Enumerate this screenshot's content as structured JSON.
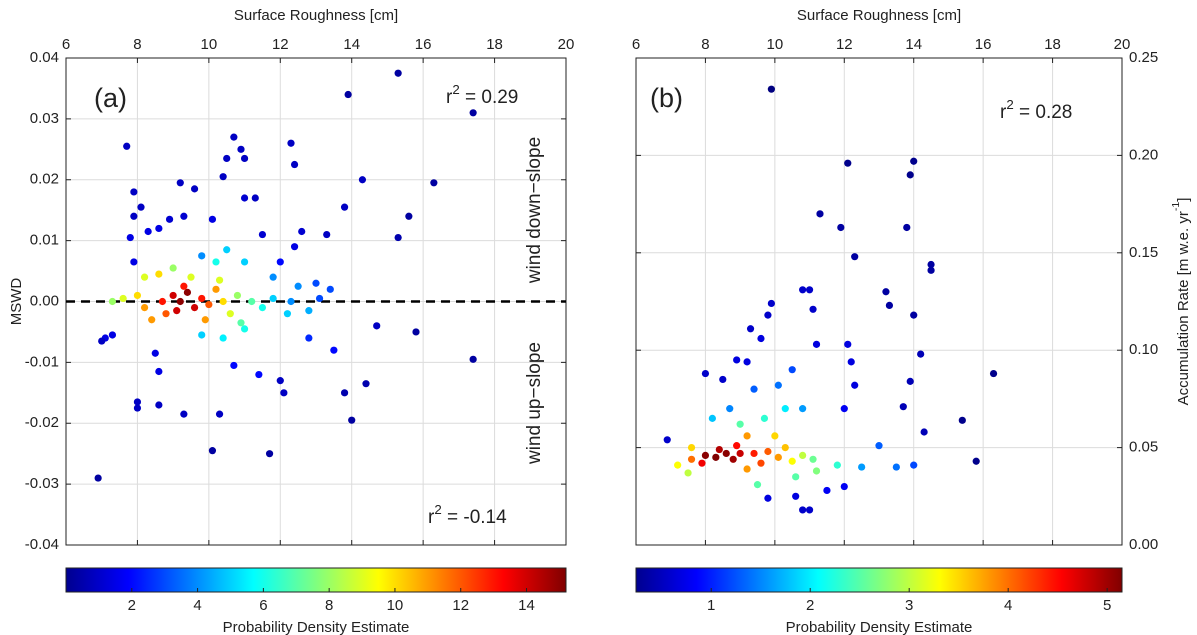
{
  "chart_data": [
    {
      "type": "scatter",
      "panel_label": "(a)",
      "x_label": "Surface Roughness [cm]",
      "y_label": "MSWD",
      "xlim": [
        6,
        20
      ],
      "xticks": [
        6,
        8,
        10,
        12,
        14,
        16,
        18,
        20
      ],
      "ylim": [
        -0.04,
        0.04
      ],
      "yticks": [
        -0.04,
        -0.03,
        -0.02,
        -0.01,
        {
          "value": 0,
          "label": "0.00"
        },
        0.01,
        0.02,
        0.03,
        0.04
      ],
      "grid": true,
      "zero_line": true,
      "annotations": [
        [
          "r",
          "2",
          " = 0.29"
        ],
        [
          "r",
          "2",
          " = -0.14"
        ]
      ],
      "side_labels": [
        "wind down−slope",
        "wind up−slope"
      ],
      "x": [
        6.9,
        7.7,
        7.9,
        7.9,
        8.1,
        7.8,
        7.9,
        7.1,
        7.3,
        7.0,
        8.0,
        8.0,
        8.6,
        8.6,
        8.5,
        9.3,
        10.1,
        10.3,
        11.7,
        9.6,
        10.5,
        10.7,
        10.9,
        11.0,
        10.4,
        12.3,
        12.4,
        11.3,
        11.0,
        9.2,
        8.9,
        9.3,
        10.1,
        11.5,
        12.6,
        13.3,
        13.8,
        14.3,
        13.9,
        15.3,
        17.4,
        16.3,
        15.6,
        15.3,
        15.8,
        17.4,
        14.4,
        14.0,
        13.8,
        12.1,
        12.0,
        14.7,
        8.3,
        8.6,
        12.4,
        12.0,
        11.4,
        10.7,
        13.5,
        12.8,
        9.8,
        10.5,
        10.2,
        11.0,
        11.8,
        12.5,
        13.0,
        13.4,
        9.8,
        10.4,
        11.0,
        12.2,
        12.8,
        7.3,
        7.6,
        8.0,
        8.2,
        8.6,
        9.0,
        9.5,
        9.0,
        9.2,
        9.4,
        9.6,
        9.1,
        9.3,
        8.7,
        8.8,
        9.8,
        10.0,
        10.2,
        10.4,
        10.6,
        10.8,
        11.2,
        11.5,
        8.4,
        8.2,
        9.9,
        10.3,
        10.9,
        11.8,
        12.3,
        13.1
      ],
      "y": [
        -0.029,
        0.0255,
        0.018,
        0.014,
        0.0155,
        0.0105,
        0.0065,
        -0.006,
        -0.0055,
        -0.0065,
        -0.0165,
        -0.0175,
        -0.0115,
        -0.017,
        -0.0085,
        -0.0185,
        -0.0245,
        -0.0185,
        -0.025,
        0.0185,
        0.0235,
        0.027,
        0.025,
        0.0235,
        0.0205,
        0.026,
        0.0225,
        0.017,
        0.017,
        0.0195,
        0.0135,
        0.014,
        0.0135,
        0.011,
        0.0115,
        0.011,
        0.0155,
        0.02,
        0.034,
        0.0375,
        0.031,
        0.0195,
        0.014,
        0.0105,
        -0.005,
        -0.0095,
        -0.0135,
        -0.0195,
        -0.015,
        -0.015,
        -0.013,
        -0.004,
        0.0115,
        0.012,
        0.009,
        0.0065,
        -0.012,
        -0.0105,
        -0.008,
        -0.006,
        0.0075,
        0.0085,
        0.0065,
        0.0065,
        0.004,
        0.0025,
        0.003,
        0.002,
        -0.0055,
        -0.006,
        -0.0045,
        -0.002,
        -0.0015,
        0.0,
        0.0005,
        0.001,
        0.004,
        0.0045,
        0.0055,
        0.004,
        0.001,
        0.0,
        0.0015,
        -0.001,
        -0.0015,
        0.0025,
        0.0,
        -0.002,
        0.0005,
        -0.0005,
        0.002,
        0.0,
        -0.002,
        0.001,
        0.0,
        -0.001,
        -0.003,
        -0.001,
        -0.003,
        0.0035,
        -0.0035,
        0.0005,
        0.0,
        0.0005
      ],
      "density": [
        0.5,
        1,
        1,
        1,
        1,
        1.5,
        1.5,
        1.5,
        1.5,
        1,
        1,
        1,
        1.5,
        1,
        1.5,
        1,
        0.5,
        1,
        0.5,
        1,
        1,
        1,
        1,
        1,
        1,
        1,
        1,
        1,
        1.2,
        1,
        1.2,
        1.2,
        1.5,
        1.2,
        1.2,
        1,
        1,
        1,
        0.5,
        0.5,
        0.5,
        0.5,
        0.5,
        0.7,
        0.5,
        0.5,
        0.7,
        0.5,
        0.7,
        1,
        1,
        1,
        1.5,
        1.5,
        1.5,
        2,
        2,
        2,
        2,
        2.5,
        4,
        5,
        6,
        5,
        4,
        4,
        3,
        3,
        5,
        5.5,
        6,
        5,
        4.5,
        8,
        9,
        10,
        9,
        10,
        8,
        9,
        14,
        15,
        15,
        14,
        14,
        13,
        13,
        12,
        13,
        12,
        11,
        10,
        9,
        8,
        7,
        6,
        11,
        11,
        11,
        9,
        7,
        5,
        4,
        3
      ],
      "colorbar": {
        "label": "Probability Density Estimate",
        "colormap": "jet",
        "lim": [
          0,
          15.2
        ],
        "ticks": [
          2,
          4,
          6,
          8,
          10,
          12,
          14
        ]
      }
    },
    {
      "type": "scatter",
      "panel_label": "(b)",
      "x_label": "Surface Roughness [cm]",
      "y_label": [
        "Accumulation Rate [m w.e. yr",
        "-1",
        "]"
      ],
      "xlim": [
        6,
        20
      ],
      "xticks": [
        6,
        8,
        10,
        12,
        14,
        16,
        18,
        20
      ],
      "ylim": [
        0,
        0.25
      ],
      "yticks": [
        {
          "value": 0,
          "label": "0.00"
        },
        0.05,
        {
          "value": 0.1,
          "label": "0.10"
        },
        0.15,
        {
          "value": 0.2,
          "label": "0.20"
        },
        0.25
      ],
      "y_axis_side": "right",
      "grid": true,
      "zero_line": false,
      "annotations": [
        [
          "r",
          "2",
          " = 0.28"
        ]
      ],
      "side_labels": [],
      "x": [
        9.9,
        12.1,
        13.9,
        14.0,
        11.3,
        11.9,
        13.8,
        12.3,
        14.5,
        14.5,
        13.2,
        13.3,
        14.0,
        16.3,
        15.4,
        15.8,
        14.2,
        13.9,
        13.7,
        14.3,
        10.8,
        11.0,
        9.9,
        9.8,
        11.1,
        11.2,
        12.1,
        12.2,
        12.3,
        8.0,
        8.5,
        8.9,
        9.2,
        6.9,
        9.3,
        9.6,
        12.0,
        10.6,
        10.8,
        11.0,
        9.8,
        12.0,
        11.5,
        8.7,
        9.4,
        10.1,
        10.5,
        8.2,
        9.0,
        9.7,
        10.3,
        10.8,
        13.0,
        12.5,
        13.5,
        14.0,
        11.8,
        11.2,
        10.6,
        9.5,
        7.5,
        7.2,
        7.6,
        10.0,
        9.2,
        8.0,
        8.3,
        8.6,
        8.8,
        9.0,
        8.4,
        7.9,
        8.9,
        9.4,
        9.6,
        9.8,
        10.1,
        10.3,
        10.5,
        10.8,
        11.1,
        7.6,
        9.2
      ],
      "y": [
        0.234,
        0.196,
        0.19,
        0.197,
        0.17,
        0.163,
        0.163,
        0.148,
        0.144,
        0.141,
        0.13,
        0.123,
        0.118,
        0.088,
        0.064,
        0.043,
        0.098,
        0.084,
        0.071,
        0.058,
        0.131,
        0.131,
        0.124,
        0.118,
        0.121,
        0.103,
        0.103,
        0.094,
        0.082,
        0.088,
        0.085,
        0.095,
        0.094,
        0.054,
        0.111,
        0.106,
        0.07,
        0.025,
        0.018,
        0.018,
        0.024,
        0.03,
        0.028,
        0.07,
        0.08,
        0.082,
        0.09,
        0.065,
        0.062,
        0.065,
        0.07,
        0.07,
        0.051,
        0.04,
        0.04,
        0.041,
        0.041,
        0.038,
        0.035,
        0.031,
        0.037,
        0.041,
        0.05,
        0.056,
        0.056,
        0.046,
        0.045,
        0.047,
        0.044,
        0.047,
        0.049,
        0.042,
        0.051,
        0.047,
        0.042,
        0.048,
        0.045,
        0.05,
        0.043,
        0.046,
        0.044,
        0.044,
        0.039
      ],
      "density": [
        0.24,
        0.3,
        0.3,
        0.3,
        0.4,
        0.4,
        0.4,
        0.4,
        0.4,
        0.4,
        0.4,
        0.4,
        0.4,
        0.3,
        0.3,
        0.3,
        0.5,
        0.5,
        0.5,
        0.5,
        0.6,
        0.6,
        0.6,
        0.6,
        0.6,
        0.7,
        0.7,
        0.7,
        0.7,
        0.6,
        0.6,
        0.7,
        0.7,
        0.6,
        0.6,
        0.7,
        0.8,
        0.7,
        0.6,
        0.6,
        0.7,
        0.8,
        0.8,
        1.5,
        1.3,
        1.4,
        1.2,
        1.8,
        2.5,
        2.3,
        2,
        1.6,
        1.3,
        1.6,
        1.4,
        1.2,
        2.3,
        2.7,
        2.5,
        2.5,
        3,
        3.3,
        3.5,
        3.5,
        3.8,
        5.1,
        5.2,
        5.1,
        5,
        4.8,
        4.9,
        4.6,
        4.5,
        4.4,
        4.2,
        4.1,
        3.8,
        3.6,
        3.3,
        3,
        2.6,
        4,
        3.8
      ],
      "colorbar": {
        "label": "Probability Density Estimate",
        "colormap": "jet",
        "lim": [
          0.24,
          5.15
        ],
        "ticks": [
          1,
          2,
          3,
          4,
          5
        ]
      }
    }
  ]
}
